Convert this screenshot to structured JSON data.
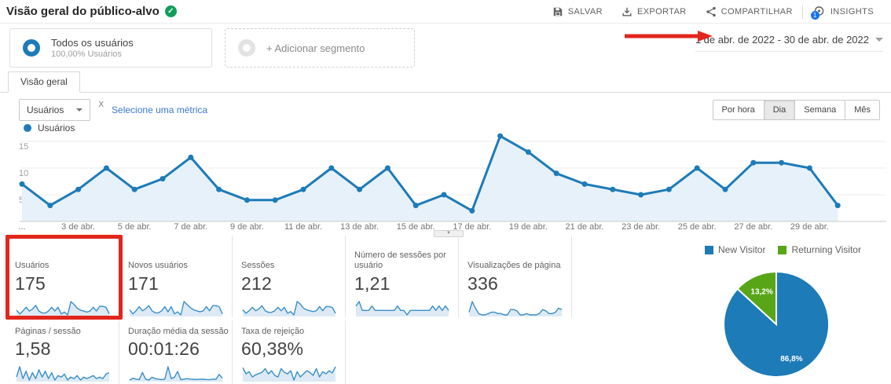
{
  "header": {
    "title": "Visão geral do público-alvo",
    "actions": [
      {
        "label": "SALVAR"
      },
      {
        "label": "EXPORTAR"
      },
      {
        "label": "COMPARTILHAR"
      },
      {
        "label": "INSIGHTS",
        "badge": "1"
      }
    ]
  },
  "segments": {
    "all_users": {
      "title": "Todos os usuários",
      "subtitle": "100,00% Usuários"
    },
    "add": {
      "label": "+ Adicionar segmento"
    }
  },
  "date_range": {
    "label": "1 de abr. de 2022 - 30 de abr. de 2022"
  },
  "tabs": [
    {
      "label": "Visão geral"
    }
  ],
  "controls": {
    "metric_dropdown": "Usuários",
    "vs_label": "X",
    "select_metric_link": "Selecione uma métrica",
    "granularity": [
      "Por hora",
      "Dia",
      "Semana",
      "Mês"
    ],
    "granularity_active": "Dia"
  },
  "chart_data": [
    {
      "type": "line",
      "name": "Usuários",
      "x_tick_labels": [
        "...",
        "3 de abr.",
        "5 de abr.",
        "7 de abr.",
        "9 de abr.",
        "11 de abr.",
        "13 de abr.",
        "15 de abr.",
        "17 de abr.",
        "19 de abr.",
        "21 de abr.",
        "23 de abr.",
        "25 de abr.",
        "27 de abr.",
        "29 de abr."
      ],
      "values": [
        7,
        3,
        6,
        10,
        6,
        8,
        12,
        6,
        4,
        4,
        6,
        10,
        6,
        10,
        3,
        5,
        2,
        16,
        13,
        9,
        7,
        6,
        5,
        6,
        10,
        6,
        11,
        11,
        10,
        3
      ],
      "yticks": [
        5,
        10,
        15
      ],
      "ylim": [
        0,
        17
      ],
      "color": "#1d7bb8",
      "grid": true,
      "legend_position": "top-left"
    },
    {
      "type": "pie",
      "legend": [
        "New Visitor",
        "Returning Visitor"
      ],
      "values": [
        86.8,
        13.2
      ],
      "labels": [
        "86,8%",
        "13,2%"
      ],
      "colors": [
        "#1d7bb8",
        "#58a618"
      ],
      "legend_position": "top"
    }
  ],
  "metrics_row1": [
    {
      "label": "Usuários",
      "value": "175",
      "spark": [
        7,
        3,
        6,
        10,
        6,
        8,
        12,
        6,
        4,
        4,
        6,
        10,
        6,
        10,
        3,
        5,
        2,
        16,
        13,
        9,
        7,
        6,
        5,
        6,
        10,
        6,
        11,
        11,
        10,
        3
      ]
    },
    {
      "label": "Novos usuários",
      "value": "171",
      "spark": [
        7,
        3,
        6,
        10,
        6,
        8,
        11,
        6,
        4,
        4,
        6,
        10,
        5,
        10,
        3,
        5,
        2,
        15,
        12,
        9,
        7,
        6,
        5,
        6,
        10,
        6,
        11,
        11,
        10,
        3
      ]
    },
    {
      "label": "Sessões",
      "value": "212",
      "spark": [
        8,
        4,
        7,
        11,
        7,
        9,
        13,
        7,
        5,
        5,
        7,
        11,
        7,
        11,
        4,
        6,
        2,
        18,
        15,
        10,
        8,
        7,
        6,
        7,
        12,
        7,
        12,
        12,
        11,
        4
      ]
    },
    {
      "label": "Número de sessões por usuário",
      "value": "1,21",
      "spark": [
        1.3,
        1.4,
        1.2,
        1.2,
        1.2,
        1.3,
        1.2,
        1.2,
        1.2,
        1.2,
        1.2,
        1.2,
        1.2,
        1.3,
        1.2,
        1.2,
        1.1,
        1.2,
        1.2,
        1.2,
        1.2,
        1.2,
        1.2,
        1.2,
        1.3,
        1.2,
        1.3,
        1.2,
        1.3,
        1.2
      ]
    },
    {
      "label": "Visualizações de página",
      "value": "336",
      "spark": [
        6,
        14,
        9,
        5,
        4,
        4,
        5,
        6,
        6,
        5,
        5,
        4,
        4,
        8,
        8,
        7,
        4,
        4,
        5,
        4,
        4,
        4,
        5,
        8,
        7,
        5,
        5,
        6,
        9,
        8
      ]
    }
  ],
  "metrics_row2": [
    {
      "label": "Páginas / sessão",
      "value": "1,58",
      "spark": [
        1.5,
        2.2,
        1.4,
        1.9,
        1.3,
        1.8,
        1.4,
        2.0,
        1.5,
        1.9,
        1.4,
        1.8,
        1.3,
        1.6,
        1.5,
        1.7,
        1.3,
        1.5,
        1.4,
        1.6,
        1.3,
        1.5,
        1.4,
        1.5,
        1.6,
        1.4,
        1.5,
        1.4,
        1.7,
        1.8
      ]
    },
    {
      "label": "Duração média da sessão",
      "value": "00:01:26",
      "spark": [
        30,
        50,
        40,
        35,
        110,
        40,
        30,
        60,
        45,
        40,
        35,
        40,
        170,
        45,
        60,
        120,
        35,
        40,
        45,
        40,
        38,
        36,
        40,
        38,
        36,
        35,
        40,
        38,
        90,
        50
      ]
    },
    {
      "label": "Taxa de rejeição",
      "value": "60,38%",
      "spark": [
        75,
        55,
        62,
        45,
        52,
        56,
        60,
        72,
        55,
        65,
        50,
        45,
        72,
        60,
        55,
        65,
        35,
        62,
        45,
        55,
        65,
        60,
        50,
        72,
        45,
        62,
        55,
        65,
        58,
        78
      ]
    }
  ],
  "annotations": {
    "color": "#e3261d"
  },
  "colors": {
    "accent_blue": "#1d7bb8",
    "pie_green": "#58a618",
    "link_blue": "#3c78d8",
    "annotation_red": "#e3261d",
    "title_check_green": "#0f9d58",
    "insights_badge_blue": "#1a73e8"
  }
}
